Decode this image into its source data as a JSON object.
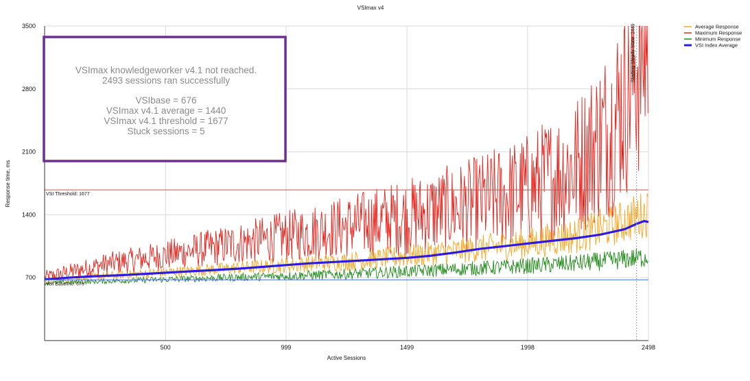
{
  "chart_data": {
    "type": "line",
    "title": "VSImax v4",
    "xlabel": "Active Sessions",
    "ylabel": "Response time, ms",
    "xlim": [
      0,
      2498
    ],
    "ylim": [
      0,
      3500
    ],
    "x_ticks": [
      "500",
      "999",
      "1499",
      "1998",
      "2498"
    ],
    "x_tick_values": [
      500,
      999,
      1499,
      1998,
      2498
    ],
    "y_ticks": [
      "700",
      "1400",
      "2100",
      "2800",
      "3500"
    ],
    "y_tick_values": [
      700,
      1400,
      2100,
      2800,
      3500
    ],
    "grid": true,
    "legend_position": "top-right",
    "series": [
      {
        "name": "Average Response",
        "color": "#f5a623",
        "x": [
          0,
          250,
          500,
          750,
          999,
          1250,
          1499,
          1750,
          1998,
          2200,
          2350,
          2450,
          2498
        ],
        "values": [
          660,
          720,
          760,
          800,
          840,
          880,
          940,
          1010,
          1080,
          1170,
          1280,
          1380,
          1420
        ]
      },
      {
        "name": "Maximum Response",
        "color": "#e8221b",
        "x": [
          0,
          250,
          500,
          750,
          999,
          1250,
          1499,
          1750,
          1998,
          2200,
          2350,
          2450,
          2498
        ],
        "values": [
          700,
          850,
          950,
          1060,
          1160,
          1270,
          1380,
          1500,
          1680,
          1950,
          2400,
          3100,
          3500
        ]
      },
      {
        "name": "Minimum Response",
        "color": "#1e8a17",
        "x": [
          0,
          250,
          500,
          750,
          999,
          1250,
          1499,
          1750,
          1998,
          2200,
          2350,
          2450,
          2498
        ],
        "values": [
          640,
          660,
          680,
          700,
          720,
          740,
          770,
          800,
          830,
          860,
          890,
          920,
          930
        ]
      },
      {
        "name": "VSI Index Average",
        "color": "#2c1be0",
        "x": [
          0,
          100,
          200,
          300,
          400,
          500,
          600,
          700,
          800,
          900,
          999,
          1100,
          1200,
          1300,
          1400,
          1499,
          1600,
          1700,
          1800,
          1900,
          1998,
          2100,
          2200,
          2300,
          2400,
          2450,
          2480,
          2498
        ],
        "values": [
          680,
          700,
          715,
          725,
          740,
          755,
          770,
          785,
          800,
          820,
          840,
          860,
          875,
          890,
          905,
          920,
          945,
          980,
          1020,
          1050,
          1080,
          1110,
          1140,
          1180,
          1240,
          1300,
          1330,
          1320
        ]
      }
    ],
    "reference_lines": [
      {
        "label": "VSI Threshold: 1677",
        "value": 1677,
        "color": "#c0504d"
      },
      {
        "label": "VSI Baseline: 676",
        "value": 676,
        "color": "#4f6fd8"
      }
    ],
    "vertical_marker": {
      "label": "Starting Steady State: 2449",
      "value": 2449
    },
    "annotation": {
      "border_color": "#6b2f8f",
      "lines": [
        "VSImax knowledgeworker v4.1 not reached.",
        "2493 sessions ran successfully",
        "",
        "VSIbase = 676",
        "VSImax v4.1 average = 1440",
        "VSImax v4.1 threshold = 1677",
        "Stuck sessions = 5"
      ]
    }
  }
}
